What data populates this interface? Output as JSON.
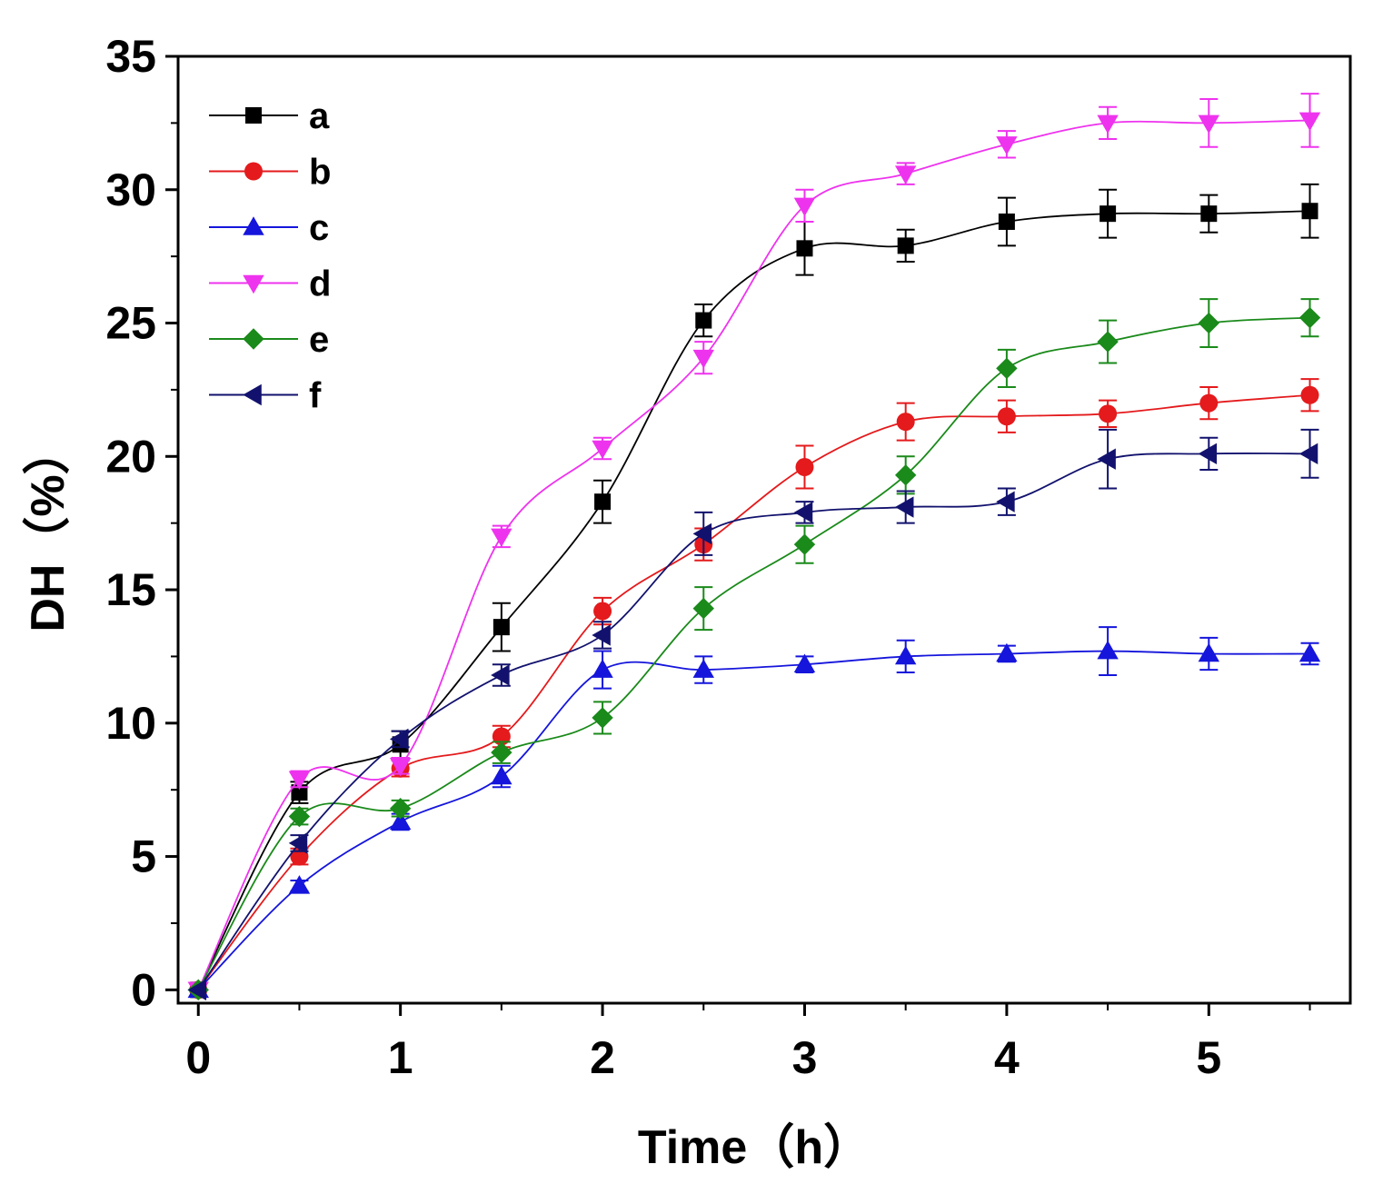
{
  "chart_data": {
    "type": "line",
    "title": "",
    "xlabel": "Time（h）",
    "ylabel": "DH（%）",
    "xlim": [
      -0.1,
      5.7
    ],
    "ylim": [
      -0.5,
      35
    ],
    "xticks": [
      0,
      1,
      2,
      3,
      4,
      5
    ],
    "yticks": [
      0,
      5,
      10,
      15,
      20,
      25,
      30,
      35
    ],
    "x_minor_step": 0.5,
    "y_minor_step": 2.5,
    "grid": false,
    "legend_position": "top-left",
    "x": [
      0,
      0.5,
      1,
      1.5,
      2,
      2.5,
      3,
      3.5,
      4,
      4.5,
      5,
      5.5
    ],
    "series": [
      {
        "name": "a",
        "color": "#000000",
        "marker": "square",
        "values": [
          0,
          7.4,
          9.2,
          13.6,
          18.3,
          25.1,
          27.8,
          27.9,
          28.8,
          29.1,
          29.1,
          29.2
        ],
        "errors": [
          0,
          0.4,
          0.5,
          0.9,
          0.8,
          0.6,
          1.0,
          0.6,
          0.9,
          0.9,
          0.7,
          1.0
        ]
      },
      {
        "name": "b",
        "color": "#e41a1c",
        "marker": "circle",
        "values": [
          0,
          5.0,
          8.3,
          9.5,
          14.2,
          16.7,
          19.6,
          21.3,
          21.5,
          21.6,
          22.0,
          22.3
        ],
        "errors": [
          0,
          0.3,
          0.3,
          0.4,
          0.5,
          0.6,
          0.8,
          0.7,
          0.6,
          0.5,
          0.6,
          0.6
        ]
      },
      {
        "name": "c",
        "color": "#1515dc",
        "marker": "triangle-up",
        "values": [
          0,
          3.9,
          6.3,
          8.0,
          12.0,
          12.0,
          12.2,
          12.5,
          12.6,
          12.7,
          12.6,
          12.6
        ],
        "errors": [
          0,
          0.2,
          0.3,
          0.4,
          0.7,
          0.5,
          0.3,
          0.6,
          0.3,
          0.9,
          0.6,
          0.4
        ]
      },
      {
        "name": "d",
        "color": "#ee33ee",
        "marker": "triangle-down",
        "values": [
          0,
          7.9,
          8.4,
          17.0,
          20.3,
          23.7,
          29.4,
          30.6,
          31.7,
          32.5,
          32.5,
          32.6
        ],
        "errors": [
          0,
          0.3,
          0.3,
          0.4,
          0.4,
          0.6,
          0.6,
          0.4,
          0.5,
          0.6,
          0.9,
          1.0
        ]
      },
      {
        "name": "e",
        "color": "#1a8a1a",
        "marker": "diamond",
        "values": [
          0,
          6.5,
          6.8,
          8.9,
          10.2,
          14.3,
          16.7,
          19.3,
          23.3,
          24.3,
          25.0,
          25.2
        ],
        "errors": [
          0,
          0.3,
          0.3,
          0.4,
          0.6,
          0.8,
          0.7,
          0.7,
          0.7,
          0.8,
          0.9,
          0.7
        ]
      },
      {
        "name": "f",
        "color": "#12126e",
        "marker": "triangle-left",
        "values": [
          0,
          5.5,
          9.4,
          11.8,
          13.3,
          17.1,
          17.9,
          18.1,
          18.3,
          19.9,
          20.1,
          20.1
        ],
        "errors": [
          0,
          0.3,
          0.3,
          0.4,
          0.5,
          0.8,
          0.4,
          0.6,
          0.5,
          1.1,
          0.6,
          0.9
        ]
      }
    ]
  }
}
